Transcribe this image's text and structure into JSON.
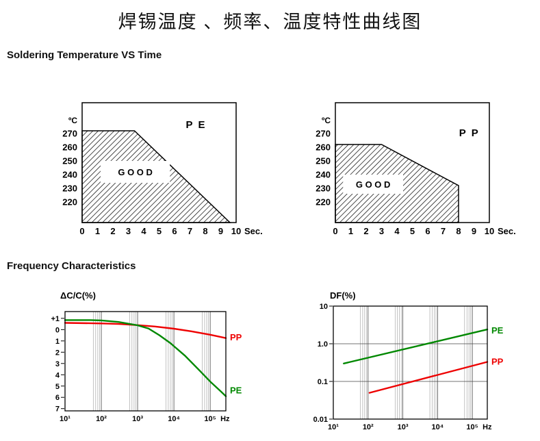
{
  "page": {
    "title": "焊锡温度 、频率、温度特性曲线图",
    "section_soldering": "Soldering Temperature VS Time",
    "section_frequency": "Frequency Characteristics"
  },
  "colors": {
    "pe_green": "#008800",
    "pp_red": "#ee0000",
    "axis_black": "#000000",
    "grid_major": "#444444",
    "grid_minor": "#999999"
  },
  "chart_data": [
    {
      "id": "solder-pe",
      "type": "area",
      "title": "P E",
      "good_label": "G O O D",
      "y_unit": "ºC",
      "x_unit": "Sec.",
      "x_ticks": [
        0,
        1,
        2,
        3,
        4,
        5,
        6,
        7,
        8,
        9,
        10
      ],
      "y_ticks": [
        270,
        260,
        250,
        240,
        230,
        220
      ],
      "xlim": [
        0,
        10
      ],
      "ylim": [
        205,
        292.5
      ],
      "region_points": [
        [
          0,
          205
        ],
        [
          0,
          272
        ],
        [
          3.4,
          272
        ],
        [
          9.6,
          205
        ]
      ],
      "good_box": {
        "x": 1.2,
        "y": 234,
        "w": 4.5,
        "h": 16
      },
      "title_pos": [
        7.4,
        274
      ]
    },
    {
      "id": "solder-pp",
      "type": "area",
      "title": "P P",
      "good_label": "G O O D",
      "y_unit": "ºC",
      "x_unit": "Sec.",
      "x_ticks": [
        0,
        1,
        2,
        3,
        4,
        5,
        6,
        7,
        8,
        9,
        10
      ],
      "y_ticks": [
        270,
        260,
        250,
        240,
        230,
        220
      ],
      "xlim": [
        0,
        10
      ],
      "ylim": [
        205,
        292.5
      ],
      "region_points": [
        [
          0,
          205
        ],
        [
          0,
          262
        ],
        [
          3,
          262
        ],
        [
          8,
          232
        ],
        [
          8,
          205
        ]
      ],
      "good_box": {
        "x": 0.5,
        "y": 226,
        "w": 3.9,
        "h": 14
      },
      "title_pos": [
        8.7,
        268
      ]
    },
    {
      "id": "freq-dcc",
      "type": "line",
      "axis_label": "ΔC/C(%)",
      "x_unit": "Hz",
      "xscale": "log",
      "yscale": "linear",
      "x_tick_labels": [
        "10¹",
        "10²",
        "10³",
        "10⁴",
        "10⁵"
      ],
      "x_tick_values": [
        10,
        100,
        1000,
        10000,
        100000
      ],
      "y_tick_labels": [
        "+1",
        "0",
        "1",
        "2",
        "3",
        "4",
        "5",
        "6",
        "7"
      ],
      "y_tick_values": [
        1,
        0,
        -1,
        -2,
        -3,
        -4,
        -5,
        -6,
        -7
      ],
      "xlim": [
        10,
        270000
      ],
      "ylim": [
        -7.2,
        1.6
      ],
      "series": [
        {
          "name": "PP",
          "color": "#ee0000",
          "label_y": -0.7,
          "points": [
            [
              10,
              0.6
            ],
            [
              100,
              0.55
            ],
            [
              300,
              0.5
            ],
            [
              1000,
              0.4
            ],
            [
              3000,
              0.28
            ],
            [
              10000,
              0.08
            ],
            [
              30000,
              -0.15
            ],
            [
              100000,
              -0.45
            ],
            [
              270000,
              -0.75
            ]
          ]
        },
        {
          "name": "PE",
          "color": "#008800",
          "label_y": -5.4,
          "points": [
            [
              10,
              0.85
            ],
            [
              50,
              0.85
            ],
            [
              100,
              0.82
            ],
            [
              300,
              0.68
            ],
            [
              1000,
              0.38
            ],
            [
              2000,
              0.1
            ],
            [
              4000,
              -0.5
            ],
            [
              8000,
              -1.2
            ],
            [
              20000,
              -2.3
            ],
            [
              50000,
              -3.6
            ],
            [
              100000,
              -4.6
            ],
            [
              200000,
              -5.5
            ],
            [
              270000,
              -5.9
            ]
          ]
        }
      ]
    },
    {
      "id": "freq-df",
      "type": "line",
      "axis_label": "DF(%)",
      "x_unit": "Hz",
      "xscale": "log",
      "yscale": "log",
      "x_tick_labels": [
        "10¹",
        "10²",
        "10³",
        "10⁴",
        "10⁵"
      ],
      "x_tick_values": [
        10,
        100,
        1000,
        10000,
        100000
      ],
      "y_tick_labels": [
        "10",
        "1.0",
        "0.1",
        "0.01"
      ],
      "y_tick_values": [
        10,
        1,
        0.1,
        0.01
      ],
      "xlim": [
        10,
        270000
      ],
      "ylim": [
        0.01,
        10
      ],
      "series": [
        {
          "name": "PE",
          "color": "#008800",
          "label_y": 2.2,
          "points": [
            [
              20,
              0.3
            ],
            [
              270000,
              2.4
            ]
          ]
        },
        {
          "name": "PP",
          "color": "#ee0000",
          "label_y": 0.33,
          "points": [
            [
              110,
              0.05
            ],
            [
              270000,
              0.33
            ]
          ]
        }
      ]
    }
  ]
}
